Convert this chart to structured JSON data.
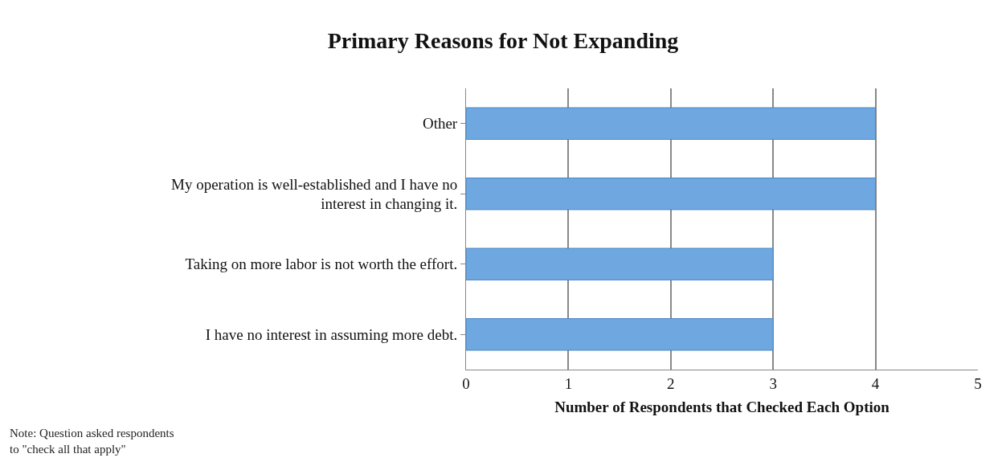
{
  "chart_data": {
    "type": "bar",
    "orientation": "horizontal",
    "title": "Primary Reasons for Not Expanding",
    "categories": [
      "Other",
      "My operation is well-established and I have no interest in changing it.",
      "Taking on more labor is not worth the effort.",
      "I have no interest in assuming more debt."
    ],
    "values": [
      4,
      4,
      3,
      3
    ],
    "color": "#6fa8e0",
    "xlabel": "Number of Respondents that Checked Each Option",
    "xlim": [
      0,
      5
    ],
    "xticks": [
      0,
      1,
      2,
      3,
      4,
      5
    ],
    "grid": "x",
    "legend": false,
    "annotations": [
      "Note: Question asked respondents to \"check all that apply\""
    ]
  }
}
